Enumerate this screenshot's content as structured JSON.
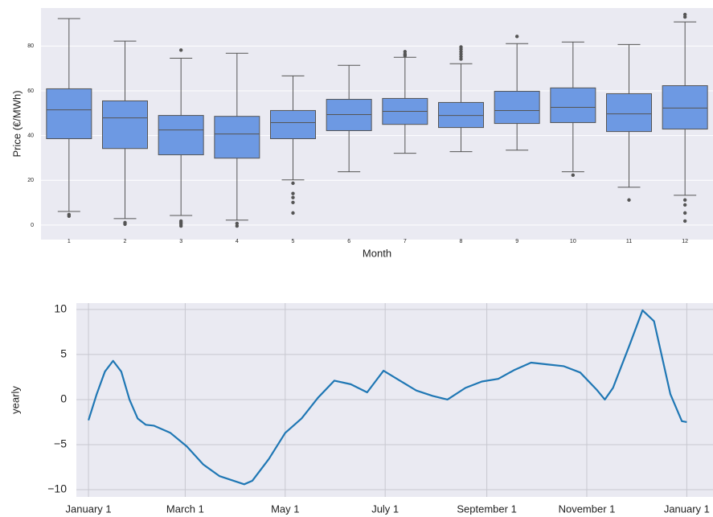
{
  "chart_data": [
    {
      "type": "box",
      "ylabel": "Price (€/MWh)",
      "xlabel": "Month",
      "categories": [
        "1",
        "2",
        "3",
        "4",
        "5",
        "6",
        "7",
        "8",
        "9",
        "10",
        "11",
        "12"
      ],
      "color": "#6d99e3",
      "grid": true,
      "ylim": [
        -6.5,
        97
      ],
      "yticks": [
        0,
        20,
        40,
        60,
        80
      ],
      "boxes": [
        {
          "whislo": 6.1,
          "q1": 38.6,
          "med": 51.5,
          "q3": 60.9,
          "whishi": 92.3,
          "fliers": [
            4.7,
            4.0
          ]
        },
        {
          "whislo": 2.9,
          "q1": 34.2,
          "med": 47.9,
          "q3": 55.5,
          "whishi": 82.2,
          "fliers": [
            1.1,
            0.4
          ]
        },
        {
          "whislo": 4.3,
          "q1": 31.4,
          "med": 42.5,
          "q3": 49.0,
          "whishi": 74.6,
          "fliers": [
            78.2,
            1.8,
            1.1,
            0.4,
            -0.4
          ]
        },
        {
          "whislo": 2.2,
          "q1": 29.9,
          "med": 40.7,
          "q3": 48.6,
          "whishi": 76.8,
          "fliers": [
            0.7,
            -0.4
          ]
        },
        {
          "whislo": 20.2,
          "q1": 38.6,
          "med": 45.8,
          "q3": 51.2,
          "whishi": 66.7,
          "fliers": [
            18.7,
            14.1,
            12.3,
            10.1,
            5.4
          ]
        },
        {
          "whislo": 23.8,
          "q1": 42.2,
          "med": 49.4,
          "q3": 56.2,
          "whishi": 71.4,
          "fliers": []
        },
        {
          "whislo": 32.1,
          "q1": 45.0,
          "med": 50.8,
          "q3": 56.6,
          "whishi": 75.0,
          "fliers": [
            77.5,
            76.4,
            75.7
          ]
        },
        {
          "whislo": 32.8,
          "q1": 43.6,
          "med": 49.0,
          "q3": 54.8,
          "whishi": 72.1,
          "fliers": [
            79.6,
            78.6,
            77.5,
            76.4,
            75.3,
            74.2
          ]
        },
        {
          "whislo": 33.5,
          "q1": 45.4,
          "med": 51.2,
          "q3": 59.8,
          "whishi": 81.1,
          "fliers": [
            84.3
          ]
        },
        {
          "whislo": 23.8,
          "q1": 45.8,
          "med": 52.6,
          "q3": 61.3,
          "whishi": 81.8,
          "fliers": [
            22.3
          ]
        },
        {
          "whislo": 16.9,
          "q1": 41.8,
          "med": 49.7,
          "q3": 58.7,
          "whishi": 80.7,
          "fliers": [
            11.2
          ]
        },
        {
          "whislo": 13.3,
          "q1": 42.9,
          "med": 52.3,
          "q3": 62.3,
          "whishi": 90.8,
          "fliers": [
            94.1,
            93.0,
            11.2,
            9.0,
            5.4,
            1.8
          ]
        }
      ]
    },
    {
      "type": "line",
      "ylabel": "yearly",
      "color": "#1f77b4",
      "grid": true,
      "xlim": [
        -7.4,
        381
      ],
      "ylim": [
        -10.8,
        10.7
      ],
      "xticks": [
        {
          "value": 0,
          "label": "January 1"
        },
        {
          "value": 59,
          "label": "March 1"
        },
        {
          "value": 120,
          "label": "May 1"
        },
        {
          "value": 181,
          "label": "July 1"
        },
        {
          "value": 243,
          "label": "September 1"
        },
        {
          "value": 304,
          "label": "November 1"
        },
        {
          "value": 365,
          "label": "January 1"
        }
      ],
      "yticks": [
        {
          "value": -10,
          "label": "−10"
        },
        {
          "value": -5,
          "label": "−5"
        },
        0,
        5,
        10
      ],
      "x": [
        0,
        5,
        10,
        15,
        20,
        25,
        30,
        35,
        40,
        50,
        60,
        70,
        80,
        90,
        95,
        100,
        110,
        120,
        130,
        140,
        150,
        160,
        170,
        175,
        180,
        190,
        200,
        210,
        219,
        230,
        240,
        250,
        260,
        270,
        280,
        290,
        300,
        310,
        315,
        320,
        330,
        338,
        345,
        355,
        362,
        365
      ],
      "values": [
        -2.3,
        0.6,
        3.1,
        4.3,
        3.1,
        0,
        -2.1,
        -2.8,
        -2.9,
        -3.7,
        -5.2,
        -7.2,
        -8.5,
        -9.1,
        -9.4,
        -9.0,
        -6.6,
        -3.7,
        -2.1,
        0.2,
        2.1,
        1.7,
        0.8,
        2.0,
        3.2,
        2.1,
        1.0,
        0.4,
        0,
        1.3,
        2.0,
        2.3,
        3.3,
        4.1,
        3.9,
        3.7,
        3.0,
        1.1,
        0,
        1.3,
        6.0,
        9.9,
        8.7,
        0.6,
        -2.4,
        -2.5
      ]
    }
  ]
}
